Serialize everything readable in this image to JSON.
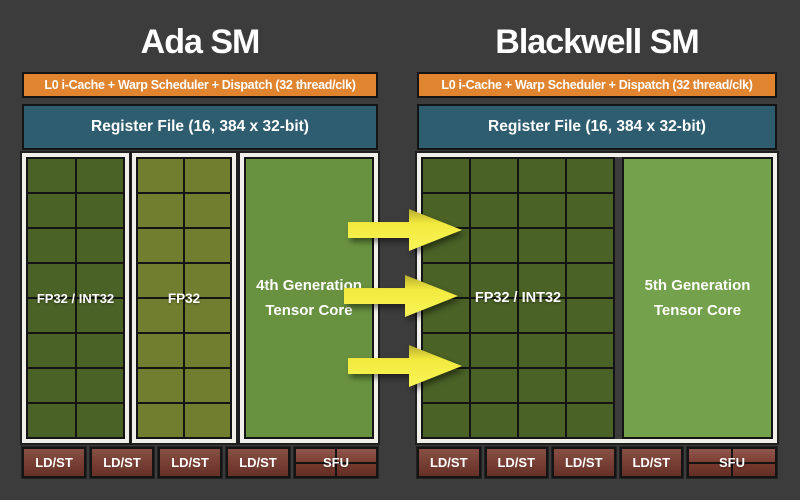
{
  "colors": {
    "background": "#3c3c3c",
    "scheduler_orange": "#e0842f",
    "register_teal": "#2e5d6f",
    "core_dark_green": "#4a6226",
    "core_olive_green": "#717d2f",
    "tensor_green_ada": "#689140",
    "tensor_green_blackwell": "#74a14b",
    "ldst_maroon": "#7c3b2f",
    "frame_white": "#f1efe9",
    "arrow_yellow": "#f2ea3e"
  },
  "panels": [
    {
      "title": "Ada SM",
      "scheduler_bar": "L0 i-Cache + Warp Scheduler + Dispatch (32 thread/clk)",
      "register_bar": "Register File (16, 384 x 32-bit)",
      "blocks": [
        {
          "label": "FP32 / INT32",
          "columns": 2,
          "rows": 8
        },
        {
          "label": "FP32",
          "columns": 2,
          "rows": 8
        },
        {
          "label_line1": "4th Generation",
          "label_line2": "Tensor Core"
        }
      ],
      "ldst": [
        "LD/ST",
        "LD/ST",
        "LD/ST",
        "LD/ST"
      ],
      "sfu": "SFU"
    },
    {
      "title": "Blackwell SM",
      "scheduler_bar": "L0 i-Cache + Warp Scheduler + Dispatch (32 thread/clk)",
      "register_bar": "Register File (16, 384 x 32-bit)",
      "blocks": [
        {
          "label": "FP32 / INT32",
          "columns": 4,
          "rows": 8
        },
        {
          "label_line1": "5th Generation",
          "label_line2": "Tensor Core"
        }
      ],
      "ldst": [
        "LD/ST",
        "LD/ST",
        "LD/ST",
        "LD/ST"
      ],
      "sfu": "SFU"
    }
  ],
  "arrows": {
    "count": 3,
    "direction": "right"
  }
}
